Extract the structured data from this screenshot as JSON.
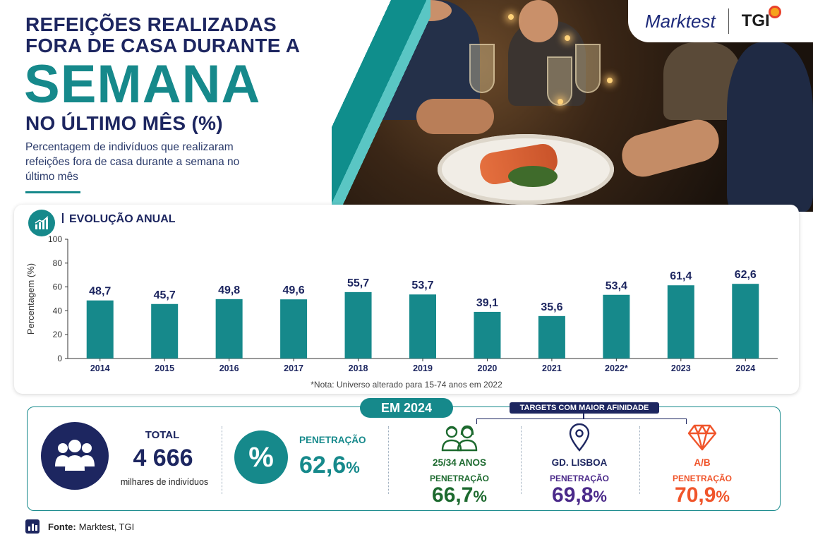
{
  "header": {
    "title_line1": "REFEIÇÕES REALIZADAS",
    "title_line2": "FORA DE CASA DURANTE A",
    "title_big": "SEMANA",
    "title_line3": "NO ÚLTIMO MÊS (%)",
    "subtitle": "Percentagem de indivíduos que realizaram refeições fora de casa durante a semana no último mês"
  },
  "brand": {
    "marktest": "Marktest",
    "tgi": "TGI"
  },
  "chart_section": {
    "heading": "EVOLUÇÃO ANUAL",
    "note": "*Nota: Universo alterado para 15-74 anos em 2022"
  },
  "chart_data": {
    "type": "bar",
    "categories": [
      "2014",
      "2015",
      "2016",
      "2017",
      "2018",
      "2019",
      "2020",
      "2021",
      "2022*",
      "2023",
      "2024"
    ],
    "values": [
      48.7,
      45.7,
      49.8,
      49.6,
      55.7,
      53.7,
      39.1,
      35.6,
      53.4,
      61.4,
      62.6
    ],
    "value_labels": [
      "48,7",
      "45,7",
      "49,8",
      "49,6",
      "55,7",
      "53,7",
      "39,1",
      "35,6",
      "53,4",
      "61,4",
      "62,6"
    ],
    "ylabel": "Percentagem (%)",
    "yticks": [
      0,
      20,
      40,
      60,
      80,
      100
    ],
    "ylim": [
      0,
      100
    ],
    "bar_color": "#16898b",
    "grid": false
  },
  "summary": {
    "badge": "EM 2024",
    "targets_label": "TARGETS COM MAIOR AFINIDADE",
    "total_label": "TOTAL",
    "total_value": "4 666",
    "total_unit": "milhares de indivíduos",
    "pct_symbol": "%",
    "penetration_label": "PENETRAÇÃO",
    "penetration_value": "62,6",
    "percent_sign": "%",
    "targets": [
      {
        "name": "25/34 ANOS",
        "pen_label": "PENETRAÇÃO",
        "value": "66,7",
        "icon": "couple-icon",
        "color": "#1d6a2f"
      },
      {
        "name": "GD. LISBOA",
        "pen_label": "PENETRAÇÃO",
        "value": "69,8",
        "icon": "location-pin-icon",
        "color": "#4b2a8a"
      },
      {
        "name": "A/B",
        "pen_label": "PENETRAÇÃO",
        "value": "70,9",
        "icon": "diamond-icon",
        "color": "#f0552b"
      }
    ]
  },
  "source": {
    "label": "Fonte:",
    "text": "Marktest, TGI"
  }
}
